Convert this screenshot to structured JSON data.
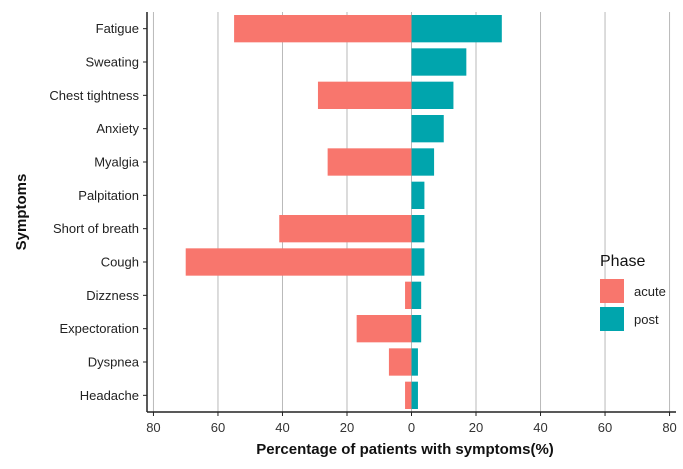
{
  "chart_data": {
    "type": "bar",
    "orientation": "horizontal-diverging",
    "categories": [
      "Fatigue",
      "Sweating",
      "Chest tightness",
      "Anxiety",
      "Myalgia",
      "Palpitation",
      "Short of breath",
      "Cough",
      "Dizzness",
      "Expectoration",
      "Dyspnea",
      "Headache"
    ],
    "series": [
      {
        "name": "acute",
        "direction": "left",
        "values": [
          55,
          0,
          29,
          0,
          26,
          0,
          41,
          70,
          2,
          17,
          7,
          2
        ]
      },
      {
        "name": "post",
        "direction": "right",
        "values": [
          28,
          17,
          13,
          10,
          7,
          4,
          4,
          4,
          3,
          3,
          2,
          2
        ]
      }
    ],
    "xlabel": "Percentage of patients with symptoms(%)",
    "ylabel": "Symptoms",
    "xlim": [
      -82,
      82
    ],
    "xticks": [
      -80,
      -60,
      -40,
      -20,
      0,
      20,
      40,
      60,
      80
    ],
    "xtick_labels": [
      "80",
      "60",
      "40",
      "20",
      "0",
      "20",
      "40",
      "60",
      "80"
    ],
    "grid": "vertical major lines",
    "legend": {
      "title": "Phase",
      "position": "right",
      "entries": [
        "acute",
        "post"
      ]
    },
    "colors": {
      "acute": "#F8766D",
      "post": "#00A5AD",
      "grid": "#b9b9b9",
      "axis": "#222222"
    }
  }
}
